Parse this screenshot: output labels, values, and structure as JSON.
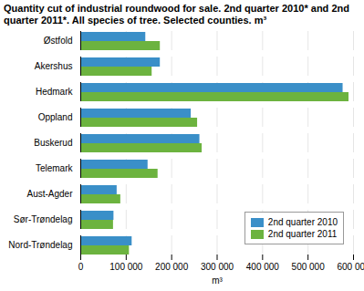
{
  "chart_data": {
    "type": "bar",
    "orientation": "horizontal",
    "title": "Quantity cut of industrial roundwood for sale. 2nd quarter 2010* and 2nd quarter 2011*. All species of tree. Selected counties. m³",
    "categories": [
      "Østfold",
      "Akershus",
      "Hedmark",
      "Oppland",
      "Buskerud",
      "Telemark",
      "Aust-Agder",
      "Sør-Trøndelag",
      "Nord-Trøndelag"
    ],
    "series": [
      {
        "name": "2nd quarter 2010",
        "color": "#3a8fc8",
        "values": [
          143000,
          175000,
          577000,
          243000,
          262000,
          148000,
          80000,
          73000,
          113000
        ]
      },
      {
        "name": "2nd quarter 2011",
        "color": "#6cb33f",
        "values": [
          175000,
          157000,
          590000,
          257000,
          267000,
          170000,
          88000,
          72000,
          107000
        ]
      }
    ],
    "xlabel": "m³",
    "xlim": [
      0,
      600000
    ],
    "xticks": [
      0,
      {
        "value": 100000,
        "label": "100 000"
      },
      {
        "value": 200000,
        "label": "200 000"
      },
      {
        "value": 300000,
        "label": "300 000"
      },
      {
        "value": 400000,
        "label": "400 000"
      },
      {
        "value": 500000,
        "label": "500 000"
      },
      {
        "value": 600000,
        "label": "600 000"
      }
    ],
    "grid": true,
    "legend": "bottom-right"
  }
}
